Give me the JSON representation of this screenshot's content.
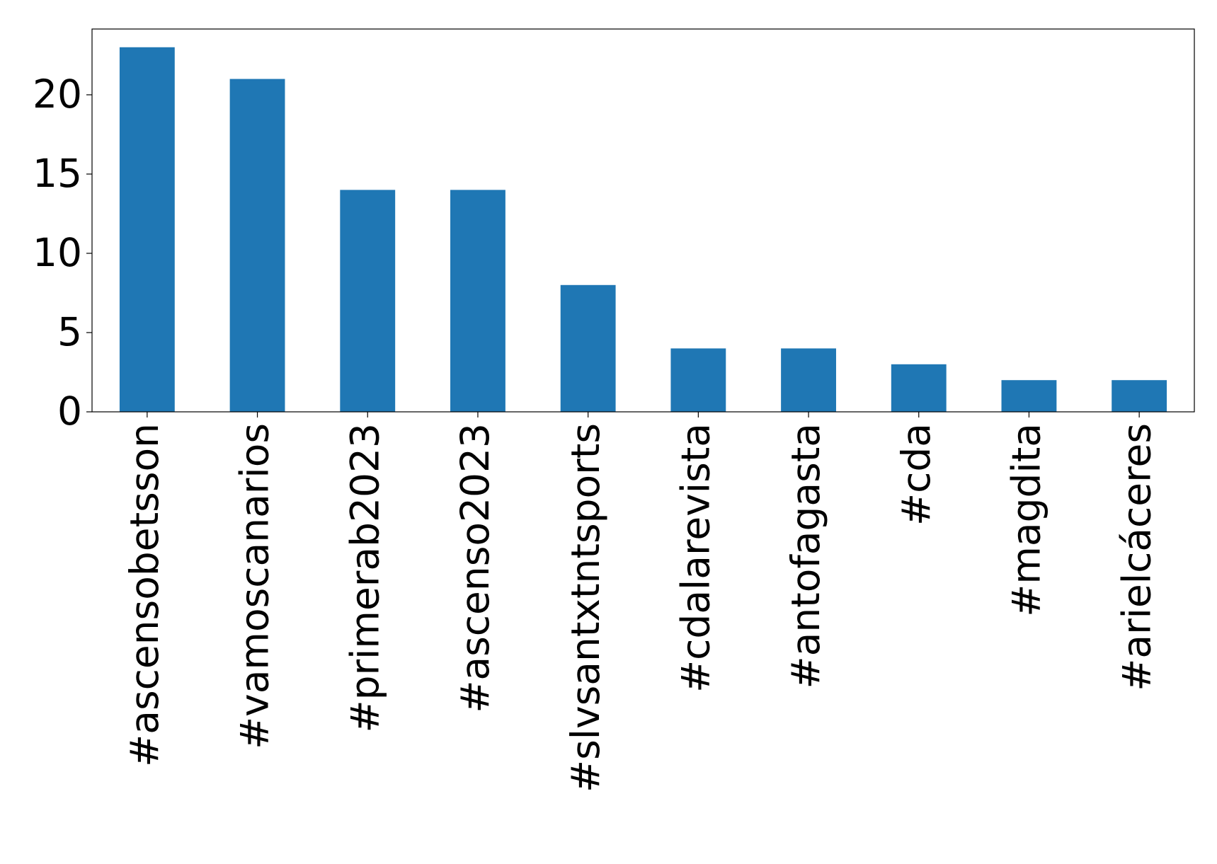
{
  "chart_data": {
    "type": "bar",
    "categories": [
      "#ascensobetsson",
      "#vamoscanarios",
      "#primerab2023",
      "#ascenso2023",
      "#slvsantxtntsports",
      "#cdalarevista",
      "#antofagasta",
      "#cda",
      "#magdita",
      "#arielcáceres"
    ],
    "values": [
      23,
      21,
      14,
      14,
      8,
      4,
      4,
      3,
      2,
      2
    ],
    "color": "#1f77b4",
    "ylim": [
      0,
      24.15
    ],
    "yticks": [
      0,
      5,
      10,
      15,
      20
    ],
    "grid": false
  }
}
